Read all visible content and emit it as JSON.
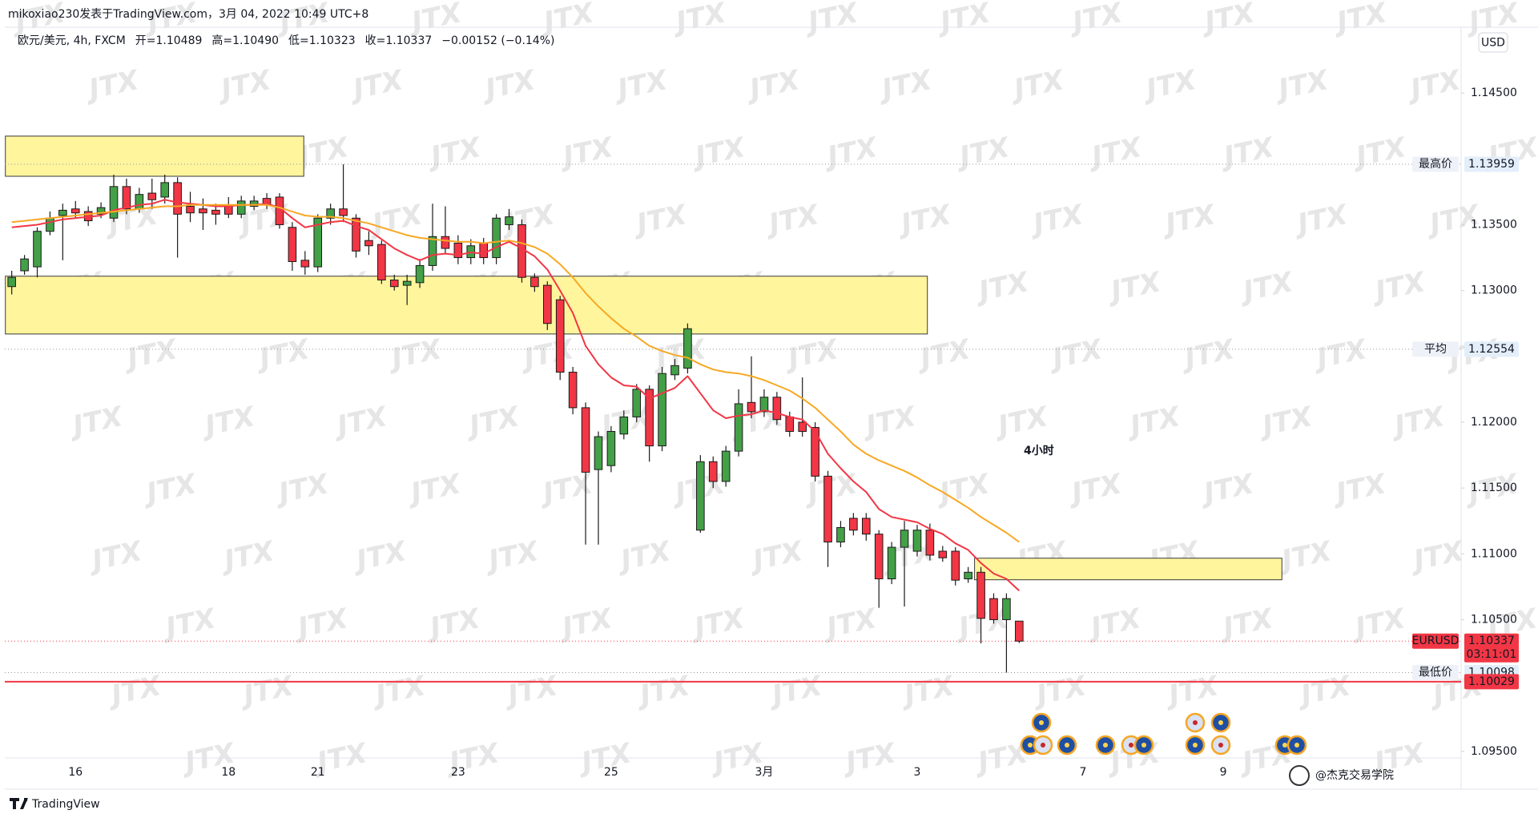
{
  "header": {
    "attribution": "mikoxiao230发表于TradingView.com，3月 04, 2022 10:49 UTC+8",
    "legend": [
      "欧元/美元, 4h, FXCM",
      "开=1.10489",
      "高=1.10490",
      "低=1.10323",
      "收=1.10337",
      "−0.00152 (−0.14%)"
    ],
    "currency": "USD",
    "annotation": "4小时",
    "watermark": "JTX",
    "credit": "@杰克交易学院",
    "brand": "TradingView"
  },
  "chart_data": {
    "type": "candlestick",
    "categories": [
      null,
      null,
      null,
      null,
      null,
      "16",
      null,
      null,
      null,
      null,
      null,
      null,
      null,
      null,
      null,
      null,
      null,
      "18",
      null,
      null,
      null,
      null,
      null,
      null,
      "21",
      null,
      null,
      null,
      null,
      null,
      null,
      null,
      null,
      null,
      null,
      "23",
      null,
      null,
      null,
      null,
      null,
      null,
      null,
      null,
      null,
      null,
      null,
      "25",
      null,
      null,
      null,
      null,
      null,
      null,
      null,
      null,
      null,
      null,
      null,
      "3月",
      null,
      null,
      null,
      null,
      null,
      null,
      null,
      null,
      null,
      null,
      null,
      "3",
      null,
      null,
      null,
      null,
      null,
      null,
      null,
      null,
      null,
      null,
      null,
      null,
      "7",
      null,
      null,
      null,
      null,
      null,
      null,
      null,
      null,
      null,
      null,
      "9",
      null,
      null,
      null,
      null,
      null,
      null,
      null,
      null,
      null,
      null,
      null,
      null,
      null,
      null,
      null,
      null,
      null,
      null
    ],
    "open": [
      1.1303,
      1.1315,
      1.1318,
      1.1345,
      1.1357,
      1.1362,
      1.136,
      1.1358,
      1.1355,
      1.1379,
      1.1362,
      1.1374,
      1.1371,
      1.1382,
      1.1364,
      1.1362,
      1.1361,
      1.1364,
      1.1358,
      1.1364,
      1.137,
      1.1371,
      1.1348,
      1.1323,
      1.1318,
      1.1355,
      1.1362,
      1.1355,
      1.1338,
      1.1335,
      1.1308,
      1.1304,
      1.1306,
      1.1319,
      1.1341,
      1.1336,
      1.1325,
      1.1336,
      1.1325,
      1.135,
      1.135,
      1.131,
      1.1304,
      1.1293,
      1.1238,
      1.1211,
      1.1164,
      1.1167,
      1.1191,
      1.1204,
      1.1225,
      1.1182,
      1.1236,
      1.1241,
      1.1118,
      1.117,
      1.1155,
      1.1178,
      1.1215,
      1.1208,
      1.1219,
      1.1204,
      1.12,
      1.1196,
      1.1159,
      1.1109,
      1.1127,
      1.1127,
      1.1115,
      1.1081,
      1.1105,
      1.1102,
      1.1118,
      1.1102,
      1.1102,
      1.1081,
      1.1086,
      1.1066,
      1.105,
      1.10489,
      null,
      null,
      null,
      null,
      null,
      null,
      null,
      null,
      null,
      null,
      null,
      null,
      null,
      null,
      null,
      null,
      null,
      null,
      null,
      null,
      null,
      null,
      null,
      null,
      null,
      null,
      null,
      null,
      null,
      null,
      null,
      null,
      null,
      null
    ],
    "high": [
      1.1315,
      1.1327,
      1.1348,
      1.136,
      1.1366,
      1.1368,
      1.1364,
      1.1367,
      1.1388,
      1.1385,
      1.1378,
      1.1385,
      1.1388,
      1.1386,
      1.1375,
      1.137,
      1.1366,
      1.1371,
      1.1372,
      1.1372,
      1.1374,
      1.1374,
      1.1352,
      1.133,
      1.1358,
      1.1366,
      1.13959,
      1.1358,
      1.1345,
      1.1338,
      1.1312,
      1.1312,
      1.1324,
      1.1366,
      1.1364,
      1.1342,
      1.1339,
      1.134,
      1.1358,
      1.1362,
      1.1354,
      1.1313,
      1.1307,
      1.1296,
      1.1242,
      1.1215,
      1.1193,
      1.1197,
      1.1209,
      1.1229,
      1.1228,
      1.1242,
      1.1248,
      1.1275,
      1.1175,
      1.1174,
      1.1182,
      1.1225,
      1.125,
      1.1225,
      1.1223,
      1.1208,
      1.1234,
      1.12,
      1.1163,
      1.1125,
      1.1131,
      1.1131,
      1.1118,
      1.1109,
      1.1125,
      1.1122,
      1.1123,
      1.1106,
      1.1105,
      1.109,
      1.109,
      1.107,
      1.107,
      1.1049,
      null,
      null,
      null,
      null,
      null,
      null,
      null,
      null,
      null,
      null,
      null,
      null,
      null,
      null,
      null,
      null,
      null,
      null,
      null,
      null,
      null,
      null,
      null,
      null,
      null,
      null,
      null,
      null,
      null,
      null,
      null,
      null,
      null,
      null
    ],
    "low": [
      1.1297,
      1.1312,
      1.131,
      1.1342,
      1.1323,
      1.1355,
      1.1349,
      1.1355,
      1.1352,
      1.1358,
      1.1359,
      1.1362,
      1.1366,
      1.1325,
      1.1352,
      1.1346,
      1.135,
      1.1355,
      1.1355,
      1.1361,
      1.1362,
      1.1347,
      1.1315,
      1.1312,
      1.1314,
      1.135,
      1.1352,
      1.1325,
      1.1327,
      1.1305,
      1.13,
      1.1289,
      1.1302,
      1.1315,
      1.1328,
      1.132,
      1.132,
      1.132,
      1.132,
      1.1346,
      1.1306,
      1.1299,
      1.127,
      1.1232,
      1.1206,
      1.1107,
      1.1107,
      1.1162,
      1.1187,
      1.12,
      1.117,
      1.1178,
      1.1232,
      1.1237,
      1.1116,
      1.115,
      1.1151,
      1.1174,
      1.1203,
      1.1204,
      1.1198,
      1.1189,
      1.1189,
      1.1155,
      1.109,
      1.1105,
      1.1114,
      1.111,
      1.1059,
      1.1077,
      1.106,
      1.1098,
      1.1095,
      1.1094,
      1.1076,
      1.1078,
      1.1032,
      1.1047,
      1.10098,
      1.10323,
      null,
      null,
      null,
      null,
      null,
      null,
      null,
      null,
      null,
      null,
      null,
      null,
      null,
      null,
      null,
      null,
      null,
      null,
      null,
      null,
      null,
      null,
      null,
      null,
      null,
      null,
      null,
      null,
      null,
      null,
      null,
      null,
      null,
      null
    ],
    "close": [
      1.131,
      1.1324,
      1.1345,
      1.1355,
      1.1361,
      1.1359,
      1.1353,
      1.1363,
      1.1379,
      1.1362,
      1.1373,
      1.1369,
      1.1382,
      1.1358,
      1.1359,
      1.1359,
      1.1358,
      1.1358,
      1.1368,
      1.1368,
      1.1365,
      1.135,
      1.1322,
      1.1318,
      1.1355,
      1.1362,
      1.1357,
      1.133,
      1.1334,
      1.1308,
      1.1303,
      1.1307,
      1.1319,
      1.1341,
      1.1332,
      1.1325,
      1.1334,
      1.1325,
      1.1355,
      1.1356,
      1.131,
      1.1303,
      1.1275,
      1.1238,
      1.1211,
      1.1162,
      1.1189,
      1.1193,
      1.1204,
      1.1225,
      1.1182,
      1.1237,
      1.1243,
      1.1271,
      1.117,
      1.1155,
      1.1178,
      1.1214,
      1.1208,
      1.1219,
      1.1202,
      1.1193,
      1.1193,
      1.1159,
      1.1109,
      1.112,
      1.1118,
      1.1115,
      1.1081,
      1.1105,
      1.1118,
      1.1118,
      1.1099,
      1.1097,
      1.108,
      1.1086,
      1.1051,
      1.105,
      1.1066,
      1.10337,
      null,
      null,
      null,
      null,
      null,
      null,
      null,
      null,
      null,
      null,
      null,
      null,
      null,
      null,
      null,
      null,
      null,
      null,
      null,
      null,
      null,
      null,
      null,
      null,
      null,
      null,
      null,
      null,
      null,
      null,
      null,
      null,
      null,
      null
    ],
    "up_color": "#43a047",
    "down_color": "#f23645",
    "outline_color": "#1b1b1b",
    "lines": [
      {
        "color": "#f23645",
        "values": [
          1.1348,
          1.1349,
          1.135,
          1.1352,
          1.1354,
          1.1355,
          1.1356,
          1.1357,
          1.1361,
          1.1363,
          1.1365,
          1.1366,
          1.1369,
          1.1367,
          1.1366,
          1.1365,
          1.1364,
          1.1364,
          1.1365,
          1.1365,
          1.1366,
          1.1363,
          1.1355,
          1.1348,
          1.135,
          1.1352,
          1.1353,
          1.1349,
          1.1346,
          1.1339,
          1.1332,
          1.1327,
          1.1323,
          1.1327,
          1.1328,
          1.1327,
          1.1329,
          1.1328,
          1.1333,
          1.1337,
          1.1332,
          1.1326,
          1.1316,
          1.13,
          1.1283,
          1.1258,
          1.1244,
          1.1234,
          1.1228,
          1.1227,
          1.1218,
          1.1222,
          1.1226,
          1.1235,
          1.1222,
          1.1209,
          1.1203,
          1.1205,
          1.1206,
          1.1209,
          1.1207,
          1.1204,
          1.1202,
          1.1193,
          1.1176,
          1.1165,
          1.1155,
          1.1147,
          1.1134,
          1.1128,
          1.1126,
          1.1124,
          1.1119,
          1.1115,
          1.1108,
          1.1103,
          1.1093,
          1.1085,
          1.1081,
          1.1072,
          null,
          null,
          null,
          null,
          null,
          null,
          null,
          null,
          null,
          null,
          null,
          null,
          null,
          null,
          null,
          null,
          null,
          null,
          null,
          null,
          null,
          null,
          null,
          null,
          null,
          null,
          null,
          null,
          null,
          null,
          null,
          null,
          null,
          null
        ]
      },
      {
        "color": "#f7a823",
        "values": [
          1.1352,
          1.1353,
          1.1354,
          1.1355,
          1.1356,
          1.1357,
          1.1358,
          1.1359,
          1.136,
          1.1361,
          1.1362,
          1.1363,
          1.1364,
          1.1364,
          1.1365,
          1.1365,
          1.1365,
          1.1365,
          1.1365,
          1.1365,
          1.1365,
          1.1363,
          1.136,
          1.1357,
          1.1356,
          1.1356,
          1.1355,
          1.1353,
          1.1351,
          1.1348,
          1.1345,
          1.1342,
          1.134,
          1.1339,
          1.1338,
          1.1337,
          1.1337,
          1.1336,
          1.1337,
          1.1338,
          1.1336,
          1.1333,
          1.1328,
          1.132,
          1.131,
          1.1298,
          1.1288,
          1.1279,
          1.1271,
          1.1265,
          1.1258,
          1.1254,
          1.1251,
          1.1249,
          1.1244,
          1.124,
          1.1238,
          1.1237,
          1.1235,
          1.1232,
          1.1228,
          1.1224,
          1.1218,
          1.1211,
          1.1202,
          1.1193,
          1.1183,
          1.1176,
          1.1171,
          1.1167,
          1.1163,
          1.1158,
          1.1152,
          1.1147,
          1.1141,
          1.1135,
          1.1128,
          1.1122,
          1.1116,
          1.1109,
          null,
          null,
          null,
          null,
          null,
          null,
          null,
          null,
          null,
          null,
          null,
          null,
          null,
          null,
          null,
          null,
          null,
          null,
          null,
          null,
          null,
          null,
          null,
          null,
          null,
          null,
          null,
          null,
          null,
          null,
          null,
          null,
          null,
          null
        ]
      }
    ],
    "zones": [
      {
        "start": 0,
        "end": 22.9,
        "top": 1.14173,
        "bottom": 1.13868
      },
      {
        "start": 0,
        "end": 71.8,
        "top": 1.13109,
        "bottom": 1.1267
      },
      {
        "start": 76,
        "end": 99.6,
        "top": 1.10967,
        "bottom": 1.10803
      }
    ],
    "zone_color": "#fff59d",
    "price_lines": [
      {
        "label": "最高价",
        "value": 1.13959,
        "color": "#9598a1",
        "style": "dotted"
      },
      {
        "label": "平均",
        "value": 1.12554,
        "color": "#9598a1",
        "style": "dotted"
      },
      {
        "label": "EURUSD",
        "value": 1.10337,
        "countdown": "03:11:01",
        "color": "#f23645",
        "style": "dotted"
      },
      {
        "label": "最低价",
        "value": 1.10098,
        "color": "#9598a1",
        "style": "dotted"
      },
      {
        "value": 1.10029,
        "color": "#f23645",
        "style": "solid"
      }
    ],
    "ylim": [
      1.0945,
      1.15
    ],
    "yticks": [
      {
        "value": 1.145,
        "label": "1.14500"
      },
      {
        "value": 1.135,
        "label": "1.13500"
      },
      {
        "value": 1.13,
        "label": "1.13000"
      },
      {
        "value": 1.12,
        "label": "1.12000"
      },
      {
        "value": 1.115,
        "label": "1.11500"
      },
      {
        "value": 1.11,
        "label": "1.11000"
      },
      {
        "value": 1.105,
        "label": "1.10500"
      },
      {
        "value": 1.095,
        "label": "1.09500"
      }
    ]
  }
}
